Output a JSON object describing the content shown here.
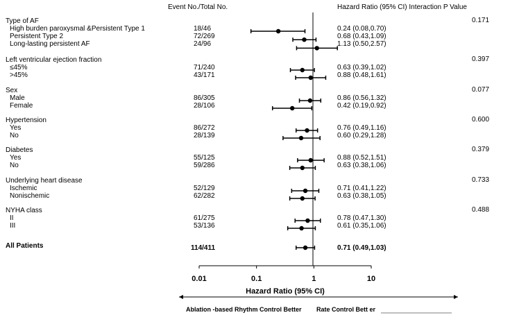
{
  "chart_data": {
    "type": "forest",
    "headers": {
      "events": "Event No./Total No.",
      "hr": "Hazard Ratio (95% CI) Interaction P Value"
    },
    "groups": [
      {
        "name": "Type of AF",
        "p": "0.171",
        "rows": [
          {
            "label": "High burden paroxysmal &Persistent Type 1",
            "events": "18/46",
            "hr": 0.24,
            "lo": 0.08,
            "hi": 0.7,
            "text": "0.24 (0.08,0.70)"
          },
          {
            "label": "Persistent Type 2",
            "events": "72/269",
            "hr": 0.68,
            "lo": 0.43,
            "hi": 1.09,
            "text": "0.68 (0.43,1.09)"
          },
          {
            "label": "Long-lasting persistent AF",
            "events": "24/96",
            "hr": 1.13,
            "lo": 0.5,
            "hi": 2.57,
            "text": "1.13 (0.50,2.57)"
          }
        ]
      },
      {
        "name": "Left ventricular ejection fraction",
        "p": "0.397",
        "rows": [
          {
            "label": "≤45%",
            "events": "71/240",
            "hr": 0.63,
            "lo": 0.39,
            "hi": 1.02,
            "text": "0.63 (0.39,1.02)"
          },
          {
            "label": ">45%",
            "events": "43/171",
            "hr": 0.88,
            "lo": 0.48,
            "hi": 1.61,
            "text": "0.88 (0.48,1.61)"
          }
        ]
      },
      {
        "name": "Sex",
        "p": "0.077",
        "rows": [
          {
            "label": "Male",
            "events": "86/305",
            "hr": 0.86,
            "lo": 0.56,
            "hi": 1.32,
            "text": "0.86 (0.56,1.32)"
          },
          {
            "label": "Female",
            "events": "28/106",
            "hr": 0.42,
            "lo": 0.19,
            "hi": 0.92,
            "text": "0.42 (0.19,0.92)"
          }
        ]
      },
      {
        "name": "Hypertension",
        "p": "0.600",
        "rows": [
          {
            "label": "Yes",
            "events": "86/272",
            "hr": 0.76,
            "lo": 0.49,
            "hi": 1.16,
            "text": "0.76 (0.49,1.16)"
          },
          {
            "label": "No",
            "events": "28/139",
            "hr": 0.6,
            "lo": 0.29,
            "hi": 1.28,
            "text": "0.60 (0.29,1.28)"
          }
        ]
      },
      {
        "name": "Diabetes",
        "p": "0.379",
        "rows": [
          {
            "label": "Yes",
            "events": "55/125",
            "hr": 0.88,
            "lo": 0.52,
            "hi": 1.51,
            "text": "0.88 (0.52,1.51)"
          },
          {
            "label": "No",
            "events": "59/286",
            "hr": 0.63,
            "lo": 0.38,
            "hi": 1.06,
            "text": "0.63 (0.38,1.06)"
          }
        ]
      },
      {
        "name": "Underlying heart disease",
        "p": "0.733",
        "rows": [
          {
            "label": "Ischemic",
            "events": "52/129",
            "hr": 0.71,
            "lo": 0.41,
            "hi": 1.22,
            "text": "0.71 (0.41,1.22)"
          },
          {
            "label": "Nonischemic",
            "events": "62/282",
            "hr": 0.63,
            "lo": 0.38,
            "hi": 1.05,
            "text": "0.63 (0.38,1.05)"
          }
        ]
      },
      {
        "name": "NYHA class",
        "p": "0.488",
        "rows": [
          {
            "label": "II",
            "events": "61/275",
            "hr": 0.78,
            "lo": 0.47,
            "hi": 1.3,
            "text": "0.78 (0.47,1.30)"
          },
          {
            "label": "III",
            "events": "53/136",
            "hr": 0.61,
            "lo": 0.35,
            "hi": 1.06,
            "text": "0.61 (0.35,1.06)"
          }
        ]
      }
    ],
    "overall": {
      "label": "All Patients",
      "events": "114/411",
      "hr": 0.71,
      "lo": 0.49,
      "hi": 1.03,
      "text": "0.71 (0.49,1.03)"
    },
    "xaxis": {
      "scale": "log",
      "range": [
        0.01,
        10
      ],
      "ticks": [
        0.01,
        0.1,
        1,
        10
      ],
      "tick_labels": [
        "0.01",
        "0.1",
        "1",
        "10"
      ],
      "label": "Hazard Ratio (95% CI)",
      "reference": 1
    },
    "direction": {
      "left": "Ablation -based Rhythm Control Better",
      "right": "Rate Control Bett er"
    }
  }
}
